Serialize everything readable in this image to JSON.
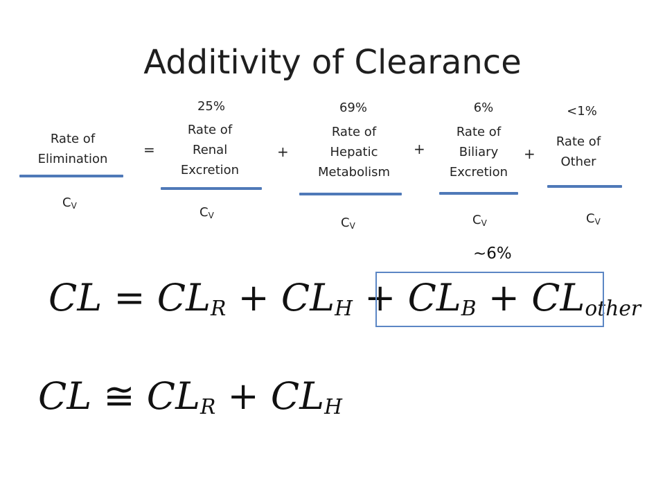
{
  "title": "Additivity of Clearance",
  "terms": {
    "elimination": {
      "line1": "Rate of",
      "line2": "Elimination",
      "denominator": "C",
      "denominator_sub": "V"
    },
    "renal": {
      "percent": "25%",
      "line1": "Rate of",
      "line2": "Renal",
      "line3": "Excretion",
      "denominator": "C",
      "denominator_sub": "V"
    },
    "hepatic": {
      "percent": "69%",
      "line1": "Rate of",
      "line2": "Hepatic",
      "line3": "Metabolism",
      "denominator": "C",
      "denominator_sub": "V"
    },
    "biliary": {
      "percent": "6%",
      "line1": "Rate of",
      "line2": "Biliary",
      "line3": "Excretion",
      "denominator": "C",
      "denominator_sub": "V"
    },
    "other": {
      "percent": "<1%",
      "line1": "Rate of",
      "line2": "Other",
      "denominator": "C",
      "denominator_sub": "V"
    }
  },
  "operators": {
    "equals": "=",
    "plus1": "+",
    "plus2": "+",
    "plus3": "+"
  },
  "approx_note": "~6%",
  "equation1": {
    "lhs": "CL",
    "eq": "=",
    "t1": "CL",
    "t1_sub": "R",
    "p1": "+",
    "t2": "CL",
    "t2_sub": "H",
    "p2": "+",
    "t3": "CL",
    "t3_sub": "B",
    "p3": "+",
    "t4": "CL",
    "t4_sub": "other"
  },
  "equation2": {
    "lhs": "CL",
    "eq": "≅",
    "t1": "CL",
    "t1_sub": "R",
    "p1": "+",
    "t2": "CL",
    "t2_sub": "H"
  },
  "colors": {
    "fraction_bar": "#4f79b8",
    "highlight_box": "#5b86c4"
  }
}
